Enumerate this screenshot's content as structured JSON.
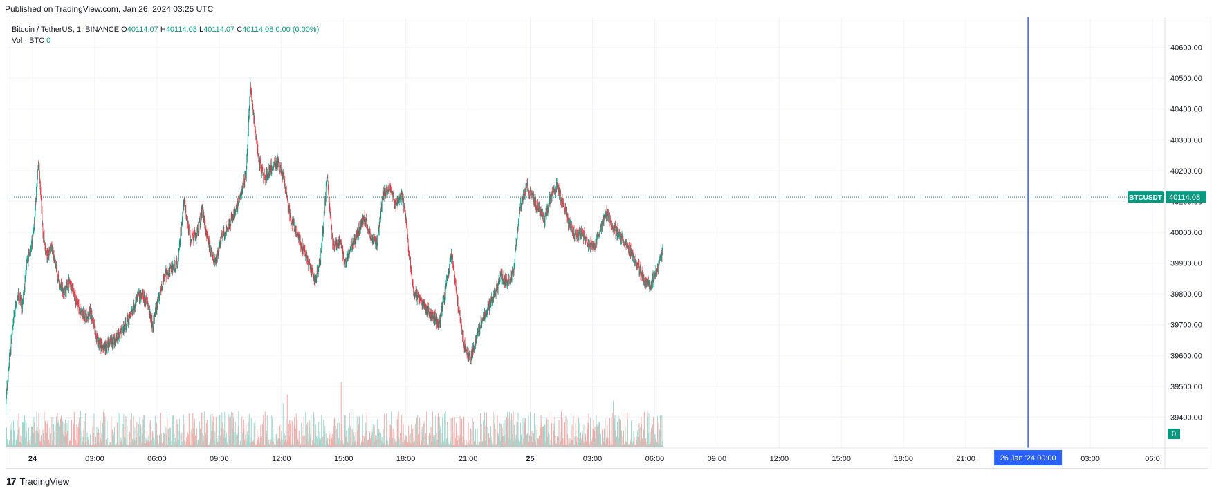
{
  "header": {
    "published": "Published on TradingView.com, Jan 26, 2024 03:25 UTC"
  },
  "legend": {
    "symbol": "Bitcoin / TetherUS, 1, BINANCE",
    "o_label": "O",
    "o_value": "40114.07",
    "h_label": "H",
    "h_value": "40114.08",
    "l_label": "L",
    "l_value": "40114.07",
    "c_label": "C",
    "c_value": "40114.08",
    "change": "0.00 (0.00%)",
    "vol_label": "Vol · BTC",
    "vol_value": "0"
  },
  "footer": {
    "logo_glyph": "17",
    "brand": "TradingView"
  },
  "colors": {
    "up": "#089981",
    "down": "#f23645",
    "up_volume": "#9fd8cf",
    "down_volume": "#f7a9a7",
    "grid": "#f0f3fa",
    "crosshair": "#2962ff",
    "axis_text": "#131722"
  },
  "chart_data": {
    "type": "candlestick",
    "symbol": "BTCUSDT",
    "interval": "1 minute",
    "ylim": [
      39300,
      40700
    ],
    "y_ticks": [
      39400,
      39500,
      39600,
      39700,
      39800,
      39900,
      40000,
      40100,
      40200,
      40300,
      40400,
      40500,
      40600
    ],
    "y_tick_labels": [
      "39400.00",
      "39500.00",
      "39600.00",
      "39700.00",
      "39800.00",
      "39900.00",
      "40000.00",
      "40100.00",
      "40200.00",
      "40300.00",
      "40400.00",
      "40500.00",
      "40600.00"
    ],
    "x_range_hours": [
      -0.9,
      30.2
    ],
    "x_ticks": [
      {
        "hour": 0,
        "label": "24",
        "bold": true
      },
      {
        "hour": 3,
        "label": "03:00"
      },
      {
        "hour": 6,
        "label": "06:00"
      },
      {
        "hour": 9,
        "label": "09:00"
      },
      {
        "hour": 12,
        "label": "12:00"
      },
      {
        "hour": 15,
        "label": "15:00"
      },
      {
        "hour": 18,
        "label": "18:00"
      },
      {
        "hour": 21,
        "label": "21:00"
      },
      {
        "hour": 24,
        "label": "25",
        "bold": true
      },
      {
        "hour": 27,
        "label": "03:00"
      },
      {
        "hour": 30,
        "label": "06:00"
      },
      {
        "hour": 33,
        "label": "09:00"
      },
      {
        "hour": 36,
        "label": "12:00"
      },
      {
        "hour": 39,
        "label": "15:00"
      },
      {
        "hour": 42,
        "label": "18:00"
      },
      {
        "hour": 45,
        "label": "21:00"
      },
      {
        "hour": 51,
        "label": "03:00"
      },
      {
        "hour": 54,
        "label": "06:0"
      }
    ],
    "series_path": [
      [
        -1.3,
        39440
      ],
      [
        -1.2,
        39520
      ],
      [
        -1.1,
        39600
      ],
      [
        -0.9,
        39720
      ],
      [
        -0.7,
        39800
      ],
      [
        -0.5,
        39760
      ],
      [
        -0.3,
        39880
      ],
      [
        -0.1,
        39950
      ],
      [
        0.0,
        39970
      ],
      [
        0.1,
        40050
      ],
      [
        0.3,
        40230
      ],
      [
        0.5,
        40000
      ],
      [
        0.7,
        39920
      ],
      [
        0.9,
        39960
      ],
      [
        1.2,
        39860
      ],
      [
        1.5,
        39800
      ],
      [
        1.8,
        39840
      ],
      [
        2.1,
        39780
      ],
      [
        2.5,
        39720
      ],
      [
        2.8,
        39740
      ],
      [
        3.1,
        39650
      ],
      [
        3.4,
        39620
      ],
      [
        3.7,
        39640
      ],
      [
        4.1,
        39660
      ],
      [
        4.5,
        39700
      ],
      [
        4.8,
        39740
      ],
      [
        5.1,
        39800
      ],
      [
        5.5,
        39780
      ],
      [
        5.8,
        39700
      ],
      [
        6.1,
        39790
      ],
      [
        6.4,
        39860
      ],
      [
        6.7,
        39880
      ],
      [
        7.0,
        39900
      ],
      [
        7.3,
        40100
      ],
      [
        7.6,
        39980
      ],
      [
        7.9,
        39990
      ],
      [
        8.2,
        40070
      ],
      [
        8.5,
        39960
      ],
      [
        8.8,
        39900
      ],
      [
        9.1,
        39980
      ],
      [
        9.4,
        40020
      ],
      [
        9.7,
        40050
      ],
      [
        10.0,
        40120
      ],
      [
        10.3,
        40190
      ],
      [
        10.5,
        40480
      ],
      [
        10.7,
        40350
      ],
      [
        10.9,
        40240
      ],
      [
        11.2,
        40170
      ],
      [
        11.5,
        40210
      ],
      [
        11.8,
        40230
      ],
      [
        12.1,
        40180
      ],
      [
        12.4,
        40050
      ],
      [
        12.7,
        40010
      ],
      [
        13.0,
        39950
      ],
      [
        13.3,
        39900
      ],
      [
        13.6,
        39840
      ],
      [
        13.9,
        39920
      ],
      [
        14.2,
        40180
      ],
      [
        14.5,
        39950
      ],
      [
        14.8,
        39970
      ],
      [
        15.1,
        39900
      ],
      [
        15.4,
        39960
      ],
      [
        15.7,
        40000
      ],
      [
        16.0,
        40050
      ],
      [
        16.3,
        39990
      ],
      [
        16.6,
        39960
      ],
      [
        16.9,
        40120
      ],
      [
        17.2,
        40150
      ],
      [
        17.5,
        40090
      ],
      [
        17.8,
        40120
      ],
      [
        18.0,
        40050
      ],
      [
        18.2,
        39900
      ],
      [
        18.4,
        39800
      ],
      [
        18.7,
        39780
      ],
      [
        19.0,
        39750
      ],
      [
        19.3,
        39730
      ],
      [
        19.6,
        39700
      ],
      [
        19.9,
        39810
      ],
      [
        20.2,
        39930
      ],
      [
        20.5,
        39770
      ],
      [
        20.8,
        39640
      ],
      [
        21.1,
        39580
      ],
      [
        21.4,
        39660
      ],
      [
        21.7,
        39720
      ],
      [
        22.0,
        39760
      ],
      [
        22.3,
        39800
      ],
      [
        22.6,
        39860
      ],
      [
        22.9,
        39830
      ],
      [
        23.2,
        39880
      ],
      [
        23.5,
        40080
      ],
      [
        23.8,
        40150
      ],
      [
        24.1,
        40120
      ],
      [
        24.4,
        40070
      ],
      [
        24.7,
        40040
      ],
      [
        25.0,
        40120
      ],
      [
        25.3,
        40150
      ],
      [
        25.6,
        40090
      ],
      [
        25.9,
        40020
      ],
      [
        26.2,
        39990
      ],
      [
        26.5,
        40000
      ],
      [
        26.8,
        39960
      ],
      [
        27.1,
        39950
      ],
      [
        27.4,
        40020
      ],
      [
        27.7,
        40060
      ],
      [
        28.0,
        40020
      ],
      [
        28.3,
        39990
      ],
      [
        28.6,
        39960
      ],
      [
        28.9,
        39930
      ],
      [
        29.2,
        39890
      ],
      [
        29.5,
        39850
      ],
      [
        29.8,
        39830
      ],
      [
        30.1,
        39880
      ],
      [
        30.4,
        39950
      ]
    ],
    "volume_max": 100,
    "crosshair": {
      "hour": 48.0,
      "label": "26 Jan '24   00:00"
    },
    "last_price_line": {
      "price": 40114.08,
      "symbol_tag": "BTCUSDT",
      "value_tag": "40114.08"
    },
    "volume_tag": "0"
  }
}
